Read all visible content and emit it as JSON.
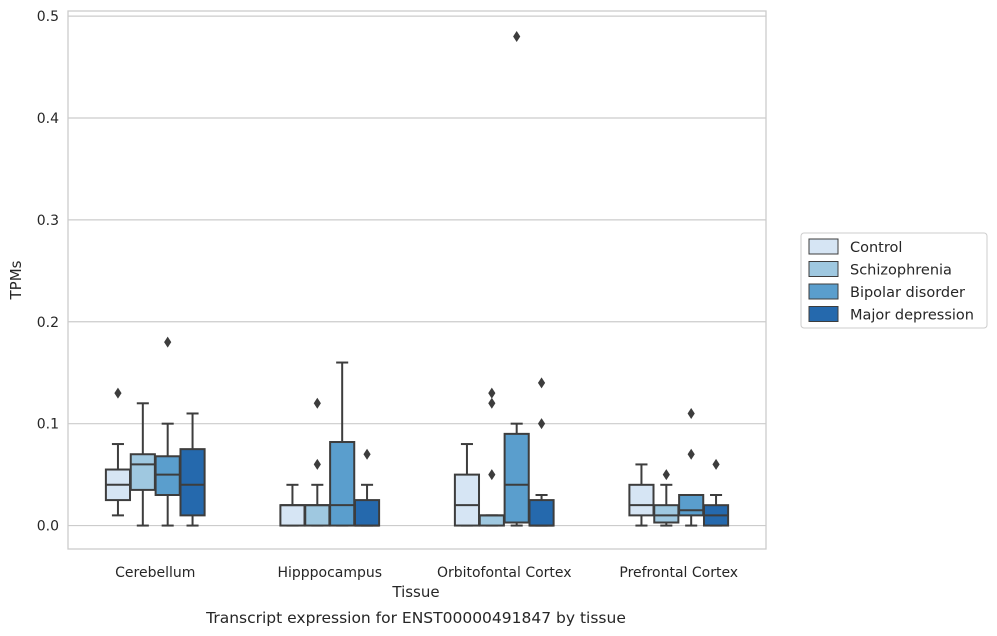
{
  "chart_data": {
    "type": "box",
    "title": "",
    "caption": "Transcript expression for ENST00000491847 by tissue",
    "xlabel": "Tissue",
    "ylabel": "TPMs",
    "ylim": [
      -0.023,
      0.505
    ],
    "yticks": [
      0.0,
      0.1,
      0.2,
      0.3,
      0.4,
      0.5
    ],
    "ytick_labels": [
      "0.0",
      "0.1",
      "0.2",
      "0.3",
      "0.4",
      "0.5"
    ],
    "categories": [
      "Cerebellum",
      "Hipppocampus",
      "Orbitofontal Cortex",
      "Prefrontal Cortex"
    ],
    "grid": "horizontal",
    "legend_position": "right",
    "series": [
      {
        "name": "Control",
        "color": "#d6e5f4",
        "boxes": [
          {
            "whislo": 0.01,
            "q1": 0.025,
            "med": 0.04,
            "q3": 0.055,
            "whishi": 0.08,
            "fliers": [
              0.13
            ]
          },
          {
            "whislo": 0.0,
            "q1": 0.0,
            "med": 0.02,
            "q3": 0.02,
            "whishi": 0.04,
            "fliers": []
          },
          {
            "whislo": 0.0,
            "q1": 0.0,
            "med": 0.02,
            "q3": 0.05,
            "whishi": 0.08,
            "fliers": []
          },
          {
            "whislo": 0.0,
            "q1": 0.01,
            "med": 0.02,
            "q3": 0.04,
            "whishi": 0.06,
            "fliers": []
          }
        ]
      },
      {
        "name": "Schizophrenia",
        "color": "#9fc8e0",
        "boxes": [
          {
            "whislo": 0.0,
            "q1": 0.035,
            "med": 0.06,
            "q3": 0.07,
            "whishi": 0.12,
            "fliers": []
          },
          {
            "whislo": 0.0,
            "q1": 0.0,
            "med": 0.02,
            "q3": 0.02,
            "whishi": 0.04,
            "fliers": [
              0.06,
              0.12
            ]
          },
          {
            "whislo": 0.0,
            "q1": 0.0,
            "med": 0.01,
            "q3": 0.01,
            "whishi": 0.01,
            "fliers": [
              0.05,
              0.12,
              0.13
            ]
          },
          {
            "whislo": 0.0,
            "q1": 0.003,
            "med": 0.01,
            "q3": 0.02,
            "whishi": 0.04,
            "fliers": [
              0.05
            ]
          }
        ]
      },
      {
        "name": "Bipolar disorder",
        "color": "#5a9ecd",
        "boxes": [
          {
            "whislo": 0.0,
            "q1": 0.03,
            "med": 0.05,
            "q3": 0.068,
            "whishi": 0.1,
            "fliers": [
              0.18
            ]
          },
          {
            "whislo": 0.0,
            "q1": 0.0,
            "med": 0.02,
            "q3": 0.082,
            "whishi": 0.16,
            "fliers": []
          },
          {
            "whislo": 0.0,
            "q1": 0.003,
            "med": 0.04,
            "q3": 0.09,
            "whishi": 0.1,
            "fliers": [
              0.48
            ]
          },
          {
            "whislo": 0.0,
            "q1": 0.01,
            "med": 0.015,
            "q3": 0.03,
            "whishi": 0.03,
            "fliers": [
              0.07,
              0.11
            ]
          }
        ]
      },
      {
        "name": "Major depression",
        "color": "#2569ad",
        "boxes": [
          {
            "whislo": 0.0,
            "q1": 0.01,
            "med": 0.04,
            "q3": 0.075,
            "whishi": 0.11,
            "fliers": []
          },
          {
            "whislo": 0.0,
            "q1": 0.0,
            "med": 0.0,
            "q3": 0.025,
            "whishi": 0.04,
            "fliers": [
              0.07
            ]
          },
          {
            "whislo": 0.0,
            "q1": 0.0,
            "med": 0.0,
            "q3": 0.025,
            "whishi": 0.03,
            "fliers": [
              0.1,
              0.14
            ]
          },
          {
            "whislo": 0.0,
            "q1": 0.0,
            "med": 0.01,
            "q3": 0.02,
            "whishi": 0.03,
            "fliers": [
              0.06
            ]
          }
        ]
      }
    ]
  }
}
